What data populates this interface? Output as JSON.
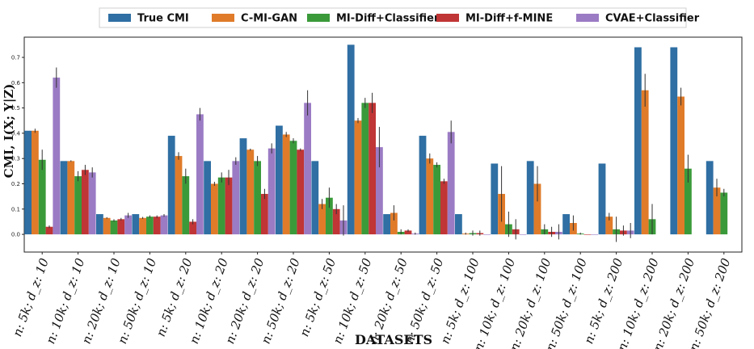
{
  "chart_data": {
    "type": "bar",
    "xlabel": "DATASETS",
    "ylabel": "CMI, I(X; Y|Z)",
    "ylim": [
      -0.07,
      0.78
    ],
    "yticks": [
      0.0,
      0.1,
      0.2,
      0.3,
      0.4,
      0.5,
      0.6,
      0.7
    ],
    "ytick_labels": [
      "0.0",
      "0.1",
      "0.2",
      "0.3",
      "0.4",
      "0.5",
      "0.6",
      "0.7"
    ],
    "legend_position": "top",
    "grid": false,
    "categories": [
      "n: 5k; d_z: 10",
      "n: 10k; d_z: 10",
      "n: 20k; d_z: 10",
      "n: 50k; d_z: 10",
      "n: 5k; d_z: 20",
      "n: 10k; d_z: 20",
      "n: 20k; d_z: 20",
      "n: 50k; d_z: 20",
      "n: 5k; d_z: 50",
      "n: 10k; d_z: 50",
      "n: 20k; d_z: 50",
      "n: 50k; d_z: 50",
      "n: 5k; d_z: 100",
      "n: 10k; d_z: 100",
      "n: 20k; d_z: 100",
      "n: 50k; d_z: 100",
      "n: 5k; d_z: 200",
      "n: 10k; d_z: 200",
      "n: 20k; d_z: 200",
      "n: 50k; d_z: 200"
    ],
    "series": [
      {
        "name": "True CMI",
        "color": "#2f6fa3",
        "values": [
          0.41,
          0.29,
          0.08,
          0.08,
          0.39,
          0.29,
          0.38,
          0.43,
          0.29,
          0.75,
          0.08,
          0.39,
          0.08,
          0.28,
          0.29,
          0.08,
          0.28,
          0.74,
          0.74,
          0.29
        ],
        "errors": [
          0,
          0,
          0,
          0,
          0,
          0,
          0,
          0,
          0,
          0,
          0,
          0,
          0,
          0,
          0,
          0,
          0,
          0,
          0,
          0
        ]
      },
      {
        "name": "C-MI-GAN",
        "color": "#e07b2a",
        "values": [
          0.41,
          0.29,
          0.065,
          0.065,
          0.31,
          0.2,
          0.335,
          0.395,
          0.12,
          0.45,
          0.085,
          0.3,
          0.003,
          0.16,
          0.2,
          0.045,
          0.07,
          0.57,
          0.545,
          0.185
        ],
        "errors": [
          0.008,
          0.003,
          0.003,
          0.004,
          0.015,
          0.008,
          0.004,
          0.01,
          0.02,
          0.01,
          0.03,
          0.02,
          0.004,
          0.11,
          0.07,
          0.03,
          0.015,
          0.065,
          0.035,
          0.035
        ]
      },
      {
        "name": "MI-Diff+Classifier",
        "color": "#3a9a3a",
        "values": [
          0.295,
          0.23,
          0.055,
          0.07,
          0.23,
          0.225,
          0.29,
          0.37,
          0.145,
          0.52,
          0.01,
          0.275,
          0.005,
          0.04,
          0.02,
          0.003,
          0.02,
          0.06,
          0.26,
          0.165
        ],
        "errors": [
          0.04,
          0.02,
          0.005,
          0.005,
          0.03,
          0.02,
          0.02,
          0.01,
          0.04,
          0.02,
          0.01,
          0.01,
          0.01,
          0.05,
          0.02,
          0.004,
          0.05,
          0.06,
          0.055,
          0.015
        ]
      },
      {
        "name": "MI-Diff+f-MINE",
        "color": "#c03535",
        "values": [
          0.03,
          0.255,
          0.06,
          0.07,
          0.05,
          0.225,
          0.16,
          0.335,
          0.1,
          0.52,
          0.015,
          0.21,
          0.005,
          0.02,
          0.01,
          0.0,
          0.015,
          null,
          null,
          null
        ],
        "errors": [
          0.005,
          0.02,
          0.005,
          0.005,
          0.01,
          0.03,
          0.02,
          0.005,
          0.02,
          0.04,
          0.005,
          0.01,
          0.01,
          0.04,
          0.02,
          0,
          0.02,
          0,
          0,
          0
        ]
      },
      {
        "name": "CVAE+Classifier",
        "color": "#9b7bc4",
        "values": [
          0.62,
          0.245,
          0.075,
          0.075,
          0.475,
          0.29,
          0.34,
          0.52,
          0.055,
          0.345,
          0.003,
          0.405,
          0.0,
          0.0,
          0.01,
          0.0,
          0.015,
          null,
          null,
          null
        ],
        "errors": [
          0.04,
          0.02,
          0.01,
          0.005,
          0.025,
          0.015,
          0.02,
          0.05,
          0.06,
          0.08,
          0.004,
          0.045,
          0,
          0,
          0.03,
          0,
          0.03,
          0,
          0,
          0
        ]
      }
    ]
  }
}
